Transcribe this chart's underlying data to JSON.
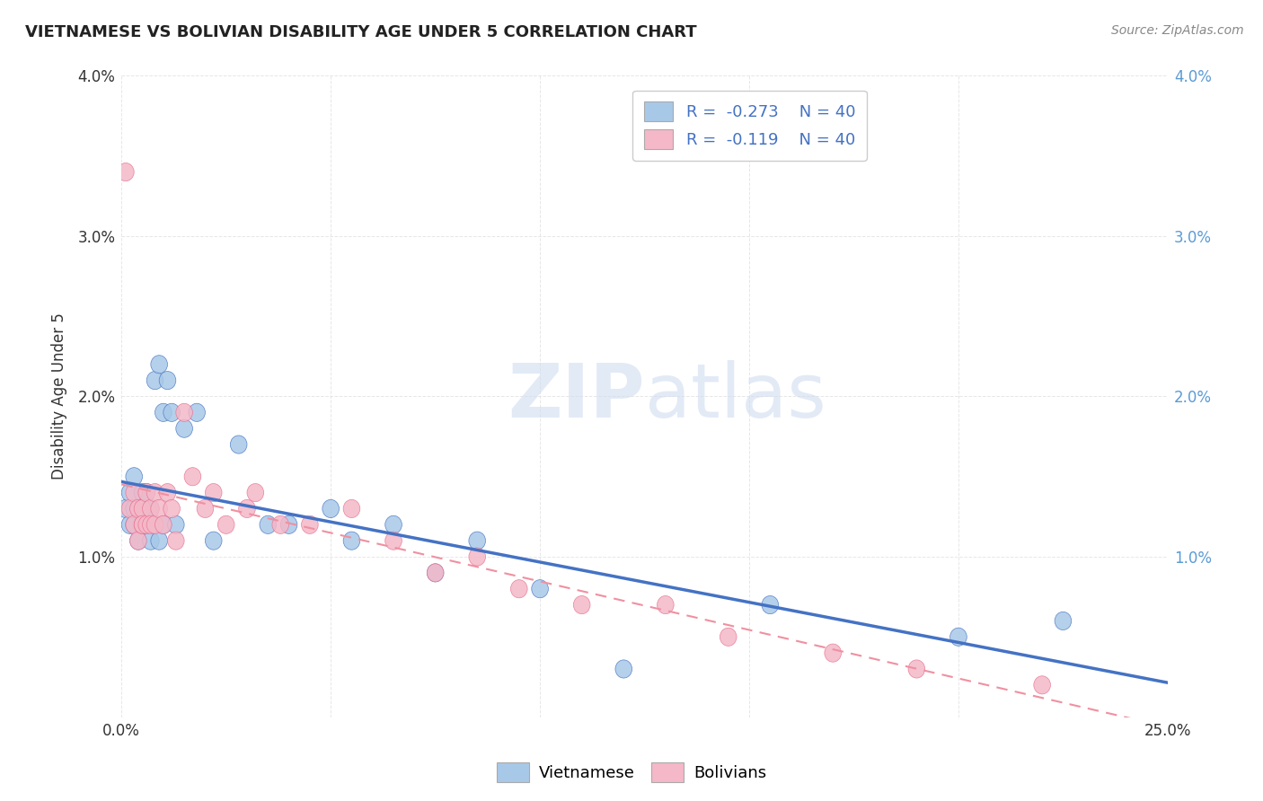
{
  "title": "VIETNAMESE VS BOLIVIAN DISABILITY AGE UNDER 5 CORRELATION CHART",
  "source_text": "Source: ZipAtlas.com",
  "xlabel": "",
  "ylabel": "Disability Age Under 5",
  "xlim": [
    0.0,
    0.25
  ],
  "ylim": [
    0.0,
    0.04
  ],
  "xticks": [
    0.0,
    0.05,
    0.1,
    0.15,
    0.2,
    0.25
  ],
  "yticks": [
    0.0,
    0.01,
    0.02,
    0.03,
    0.04
  ],
  "ytick_labels_left": [
    "",
    "1.0%",
    "2.0%",
    "3.0%",
    "4.0%"
  ],
  "ytick_labels_right": [
    "",
    "1.0%",
    "2.0%",
    "3.0%",
    "4.0%"
  ],
  "xtick_labels": [
    "0.0%",
    "",
    "",
    "",
    "",
    "25.0%"
  ],
  "background_color": "#ffffff",
  "plot_bg_color": "#ffffff",
  "grid_color": "#e0e0e0",
  "vietnamese_color": "#A8C8E8",
  "vietnamese_edge_color": "#4472C4",
  "bolivian_color": "#F4B8C8",
  "bolivian_edge_color": "#E87090",
  "vietnamese_line_color": "#4472C4",
  "bolivian_line_color": "#F090A0",
  "r_vietnamese": -0.273,
  "r_bolivian": -0.119,
  "n_vietnamese": 40,
  "n_bolivian": 40,
  "legend_r_color": "#4472C4",
  "vietnamese_x": [
    0.001,
    0.002,
    0.002,
    0.003,
    0.003,
    0.003,
    0.004,
    0.004,
    0.005,
    0.005,
    0.005,
    0.006,
    0.006,
    0.007,
    0.007,
    0.008,
    0.008,
    0.009,
    0.009,
    0.01,
    0.01,
    0.011,
    0.012,
    0.013,
    0.015,
    0.018,
    0.022,
    0.028,
    0.035,
    0.04,
    0.05,
    0.055,
    0.065,
    0.075,
    0.085,
    0.1,
    0.12,
    0.155,
    0.2,
    0.225
  ],
  "vietnamese_y": [
    0.013,
    0.012,
    0.014,
    0.012,
    0.013,
    0.015,
    0.011,
    0.013,
    0.012,
    0.014,
    0.013,
    0.012,
    0.014,
    0.011,
    0.013,
    0.012,
    0.021,
    0.022,
    0.011,
    0.012,
    0.019,
    0.021,
    0.019,
    0.012,
    0.018,
    0.019,
    0.011,
    0.017,
    0.012,
    0.012,
    0.013,
    0.011,
    0.012,
    0.009,
    0.011,
    0.008,
    0.003,
    0.007,
    0.005,
    0.006
  ],
  "bolivian_x": [
    0.001,
    0.002,
    0.003,
    0.003,
    0.004,
    0.004,
    0.005,
    0.005,
    0.005,
    0.006,
    0.006,
    0.007,
    0.007,
    0.008,
    0.008,
    0.009,
    0.01,
    0.011,
    0.012,
    0.013,
    0.015,
    0.017,
    0.02,
    0.022,
    0.025,
    0.03,
    0.032,
    0.038,
    0.045,
    0.055,
    0.065,
    0.075,
    0.085,
    0.095,
    0.11,
    0.13,
    0.145,
    0.17,
    0.19,
    0.22
  ],
  "bolivian_y": [
    0.034,
    0.013,
    0.014,
    0.012,
    0.013,
    0.011,
    0.012,
    0.013,
    0.012,
    0.014,
    0.012,
    0.013,
    0.012,
    0.014,
    0.012,
    0.013,
    0.012,
    0.014,
    0.013,
    0.011,
    0.019,
    0.015,
    0.013,
    0.014,
    0.012,
    0.013,
    0.014,
    0.012,
    0.012,
    0.013,
    0.011,
    0.009,
    0.01,
    0.008,
    0.007,
    0.007,
    0.005,
    0.004,
    0.003,
    0.002
  ]
}
